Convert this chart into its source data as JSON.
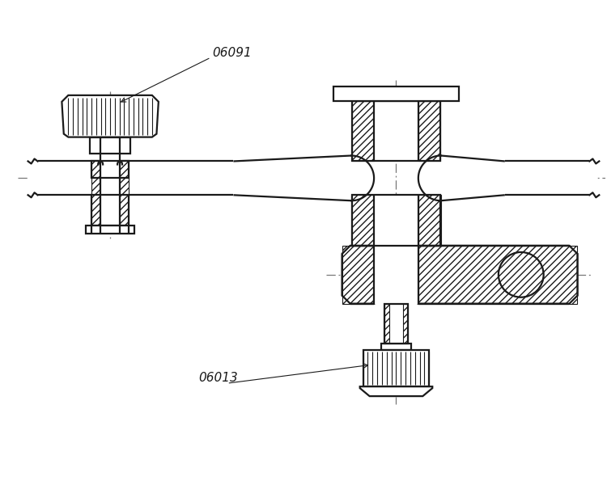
{
  "bg_color": "#ffffff",
  "line_color": "#1a1a1a",
  "lw": 1.6,
  "lw_thin": 0.8,
  "lw_cl": 0.9,
  "label_06091": "06091",
  "label_06013": "06013",
  "label_fontsize": 11
}
